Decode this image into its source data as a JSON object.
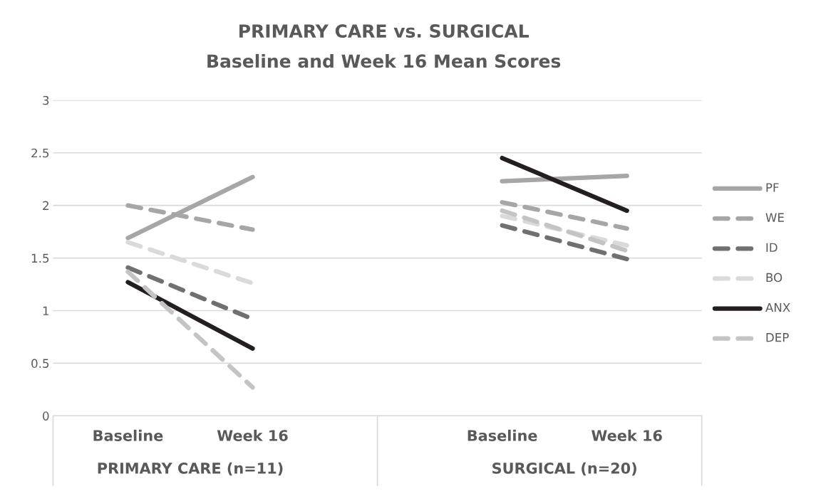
{
  "chart_data": {
    "type": "line",
    "title": "PRIMARY CARE vs. SURGICAL",
    "subtitle": "Baseline and Week 16 Mean Scores",
    "categories": [
      "Baseline",
      "Week 16",
      null,
      "Baseline",
      "Week 16"
    ],
    "series": [
      {
        "name": "PF",
        "color": "#a6a6a8",
        "line_style": "solid",
        "values": [
          1.69,
          2.27,
          null,
          2.23,
          2.28
        ]
      },
      {
        "name": "WE",
        "color": "#a6a6a8",
        "line_style": "dashed",
        "values": [
          2.0,
          1.77,
          null,
          2.03,
          1.78
        ]
      },
      {
        "name": "ID",
        "color": "#707072",
        "line_style": "dashed",
        "values": [
          1.41,
          0.92,
          null,
          1.81,
          1.49
        ]
      },
      {
        "name": "BO",
        "color": "#dadadb",
        "line_style": "dashed",
        "values": [
          1.65,
          1.26,
          null,
          1.9,
          1.62
        ]
      },
      {
        "name": "ANX",
        "color": "#231f20",
        "line_style": "solid",
        "values": [
          1.27,
          0.64,
          null,
          2.45,
          1.95
        ]
      },
      {
        "name": "DEP",
        "color": "#c4c4c6",
        "line_style": "dashed",
        "values": [
          1.37,
          0.27,
          null,
          1.95,
          1.57
        ]
      }
    ],
    "annotations": [
      "PRIMARY CARE (n=11)",
      "SURGICAL (n=20)"
    ],
    "ylim": [
      0,
      3
    ],
    "yticks": [
      0,
      0.5,
      1,
      1.5,
      2,
      2.5,
      3
    ],
    "grid": "y",
    "legend": "right",
    "marker": "none"
  }
}
